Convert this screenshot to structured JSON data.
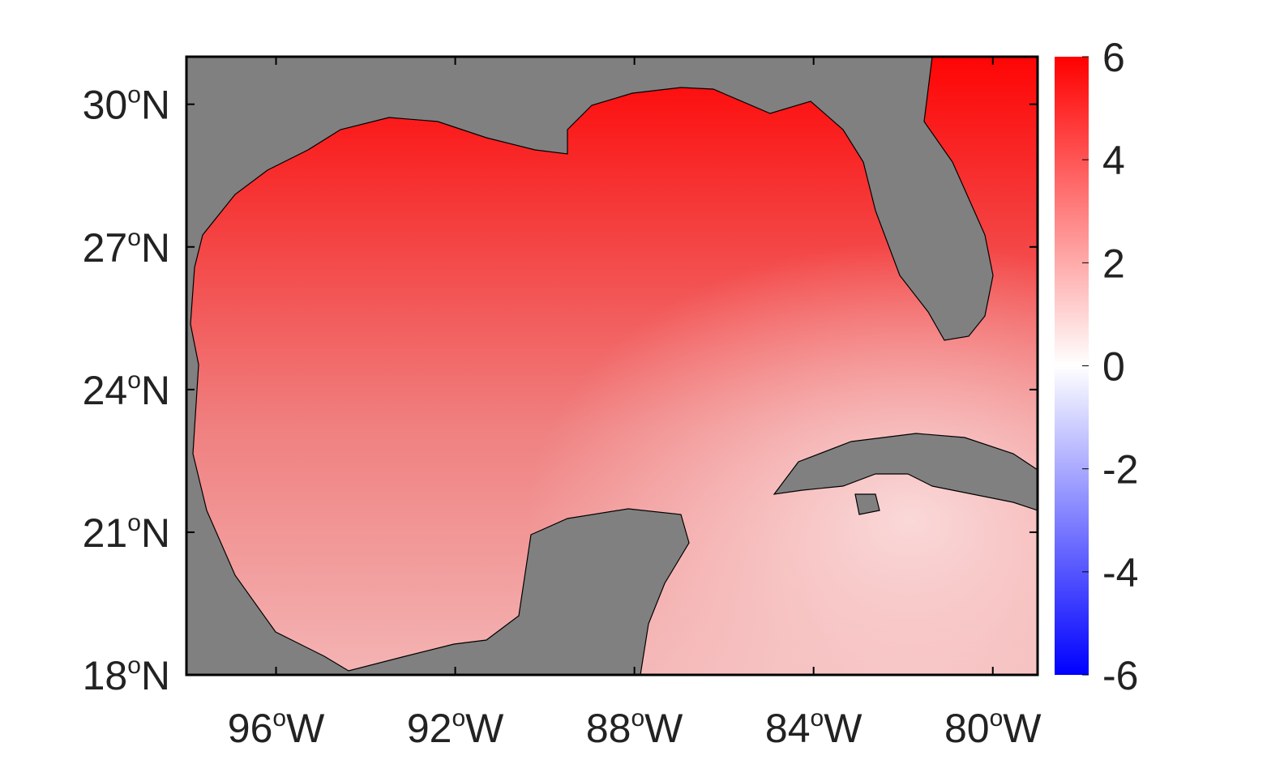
{
  "chart_data": {
    "type": "map",
    "xlim": [
      -98,
      -79
    ],
    "xticks": [
      {
        "value": -96,
        "label": "96oW"
      },
      {
        "value": -92,
        "label": "92oW"
      },
      {
        "value": -88,
        "label": "88oW"
      },
      {
        "value": -84,
        "label": "84oW"
      },
      {
        "value": -80,
        "label": "80oW"
      }
    ],
    "ylim": [
      18,
      31
    ],
    "yticks": [
      {
        "value": 18,
        "label": "18oN"
      },
      {
        "value": 21,
        "label": "21oN"
      },
      {
        "value": 24,
        "label": "24oN"
      },
      {
        "value": 27,
        "label": "27oN"
      },
      {
        "value": 30,
        "label": "30oN"
      }
    ],
    "colorbar": {
      "lim": [
        -6,
        6
      ],
      "ticks": [
        -6,
        -4,
        -2,
        0,
        2,
        4,
        6
      ],
      "colors": [
        "#0000ff",
        "#ffffff",
        "#ff0000"
      ]
    },
    "land_color": "#808080"
  }
}
